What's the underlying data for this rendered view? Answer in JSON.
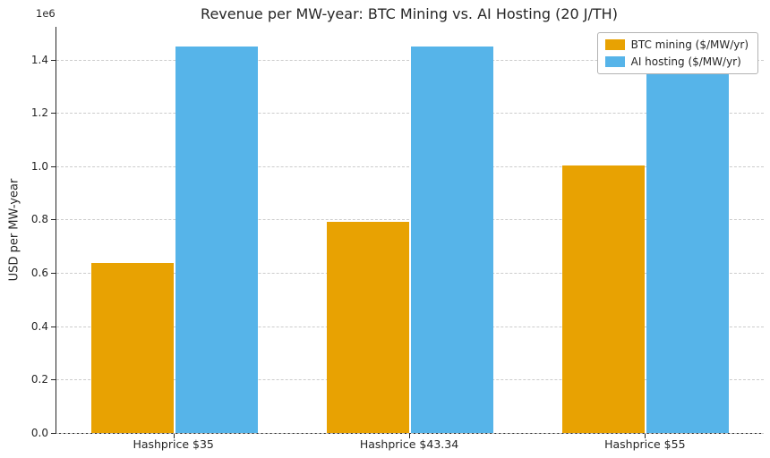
{
  "chart_data": {
    "type": "bar",
    "title": "Revenue per MW-year: BTC Mining vs. AI Hosting (20 J/TH)",
    "ylabel": "USD per MW-year",
    "xlabel": "",
    "offset_text": "1e6",
    "categories": [
      "Hashprice $35",
      "Hashprice $43.34",
      "Hashprice $55"
    ],
    "series": [
      {
        "name": "BTC mining ($/MW/yr)",
        "color": "#e8a202",
        "values": [
          638750,
          791000,
          1003750
        ]
      },
      {
        "name": "AI hosting ($/MW/yr)",
        "color": "#56b4e9",
        "values": [
          1450000,
          1450000,
          1450000
        ]
      }
    ],
    "ylim": [
      0,
      1522500
    ],
    "yticks": [
      0,
      200000,
      400000,
      600000,
      800000,
      1000000,
      1200000,
      1400000
    ],
    "ytick_label_scale": 1000000,
    "grid": true,
    "legend_position": "upper right"
  }
}
